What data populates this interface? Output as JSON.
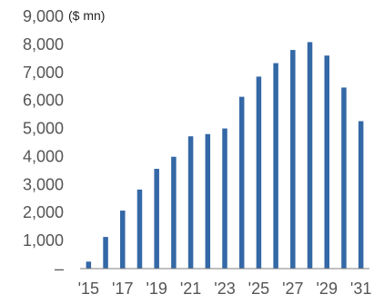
{
  "chart_data": {
    "type": "bar",
    "unit_label": "($ mn)",
    "categories": [
      "2015",
      "2016",
      "2017",
      "2018",
      "2019",
      "2020",
      "2021",
      "2022",
      "2023",
      "2024",
      "2025",
      "2026",
      "2027",
      "2028",
      "2029",
      "2030",
      "2031"
    ],
    "x_tick_labels": [
      "'15",
      "'17",
      "'19",
      "'21",
      "'23",
      "'25",
      "'27",
      "'29",
      "'31"
    ],
    "x_tick_categories": [
      "2015",
      "2017",
      "2019",
      "2021",
      "2023",
      "2025",
      "2027",
      "2029",
      "2031"
    ],
    "values": [
      250,
      1130,
      2070,
      2820,
      3560,
      3990,
      4720,
      4800,
      5000,
      6130,
      6850,
      7330,
      7800,
      8080,
      7600,
      6460,
      5260
    ],
    "y_ticks": [
      0,
      1000,
      2000,
      3000,
      4000,
      5000,
      6000,
      7000,
      8000,
      9000
    ],
    "y_tick_labels": [
      "–",
      "1,000",
      "2,000",
      "3,000",
      "4,000",
      "5,000",
      "6,000",
      "7,000",
      "8,000",
      "9,000"
    ],
    "ylim": [
      0,
      9000
    ],
    "grid": false,
    "colors": {
      "bar": "#3468a6",
      "axis": "#7f7f7f"
    }
  }
}
